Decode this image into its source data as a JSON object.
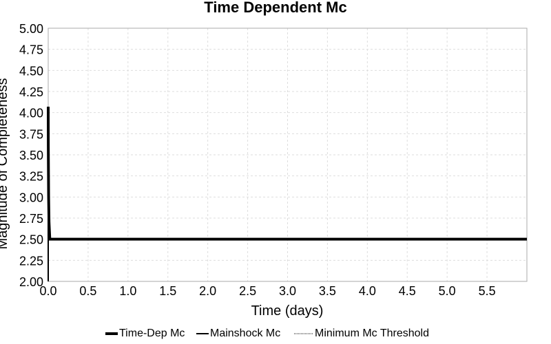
{
  "chart_data": {
    "type": "line",
    "title": "Time Dependent Mc",
    "xlabel": "Time (days)",
    "ylabel": "Magnitude of Completeness",
    "xlim": [
      0,
      6.0
    ],
    "ylim": [
      2.0,
      5.0
    ],
    "xticks": [
      "0.0",
      "0.5",
      "1.0",
      "1.5",
      "2.0",
      "2.5",
      "3.0",
      "3.5",
      "4.0",
      "4.5",
      "5.0",
      "5.5"
    ],
    "yticks": [
      "2.00",
      "2.25",
      "2.50",
      "2.75",
      "3.00",
      "3.25",
      "3.50",
      "3.75",
      "4.00",
      "4.25",
      "4.50",
      "4.75",
      "5.00"
    ],
    "grid": true,
    "legend_position": "bottom",
    "series": [
      {
        "name": "Time-Dep Mc",
        "style": "thick",
        "color": "#000000",
        "x": [
          0.0,
          0.001,
          0.005,
          0.01,
          0.02,
          6.0
        ],
        "y": [
          4.07,
          3.6,
          3.0,
          2.7,
          2.5,
          2.5
        ]
      },
      {
        "name": "Mainshock Mc",
        "style": "medium",
        "color": "#000000",
        "x": [
          0.0,
          0.0
        ],
        "y": [
          2.0,
          4.07
        ]
      },
      {
        "name": "Minimum Mc Threshold",
        "style": "dotted",
        "color": "#000000",
        "x": [
          0.0,
          6.0
        ],
        "y": [
          2.5,
          2.5
        ]
      }
    ]
  }
}
